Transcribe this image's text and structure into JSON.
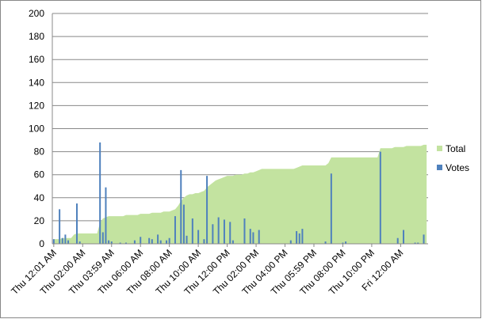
{
  "chart_data": {
    "type": "bar",
    "categories": [
      "Thu 12:01 AM",
      null,
      null,
      null,
      null,
      null,
      null,
      null,
      null,
      null,
      "Thu 02:00 AM",
      null,
      null,
      null,
      null,
      null,
      null,
      null,
      null,
      null,
      "Thu 03:59 AM",
      null,
      null,
      null,
      null,
      null,
      null,
      null,
      null,
      null,
      "Thu 06:00 AM",
      null,
      null,
      null,
      null,
      null,
      null,
      null,
      null,
      null,
      "Thu 08:00 AM",
      null,
      null,
      null,
      null,
      null,
      null,
      null,
      null,
      null,
      "Thu 10:00 AM",
      null,
      null,
      null,
      null,
      null,
      null,
      null,
      null,
      null,
      "Thu 12:00 PM",
      null,
      null,
      null,
      null,
      null,
      null,
      null,
      null,
      null,
      "Thu 02:00 PM",
      null,
      null,
      null,
      null,
      null,
      null,
      null,
      null,
      null,
      "Thu 04:00 PM",
      null,
      null,
      null,
      null,
      null,
      null,
      null,
      null,
      null,
      "Thu 05:59 PM",
      null,
      null,
      null,
      null,
      null,
      null,
      null,
      null,
      null,
      "Thu 08:00 PM",
      null,
      null,
      null,
      null,
      null,
      null,
      null,
      null,
      null,
      "Thu 10:00 PM",
      null,
      null,
      null,
      null,
      null,
      null,
      null,
      null,
      null,
      "Fri 12:00 AM",
      null,
      null,
      null,
      null,
      null,
      null,
      null,
      null,
      null
    ],
    "series": [
      {
        "name": "Total",
        "color": "#c3e3a0",
        "draw": "area",
        "values": [
          4,
          4,
          4,
          5,
          5,
          5,
          5,
          8,
          9,
          9,
          9,
          9,
          9,
          9,
          9,
          9,
          18,
          22,
          23,
          24,
          24,
          24,
          24,
          24,
          24,
          25,
          25,
          25,
          25,
          25,
          26,
          26,
          26,
          26,
          27,
          27,
          27,
          27,
          28,
          28,
          28,
          29,
          30,
          33,
          37,
          40,
          42,
          43,
          43,
          44,
          44,
          45,
          46,
          49,
          51,
          53,
          55,
          56,
          57,
          58,
          59,
          59,
          59,
          60,
          60,
          60,
          61,
          61,
          62,
          62,
          63,
          64,
          65,
          65,
          65,
          65,
          65,
          65,
          65,
          65,
          65,
          65,
          65,
          65,
          66,
          67,
          68,
          68,
          68,
          68,
          68,
          68,
          68,
          68,
          68,
          70,
          75,
          75,
          75,
          75,
          75,
          75,
          75,
          75,
          75,
          75,
          75,
          75,
          75,
          75,
          75,
          75,
          75,
          83,
          83,
          83,
          83,
          83,
          84,
          84,
          84,
          84,
          85,
          85,
          85,
          85,
          85,
          85,
          86,
          86
        ]
      },
      {
        "name": "Votes",
        "color": "#4f81bd",
        "draw": "bar",
        "values": [
          4,
          0,
          30,
          5,
          8,
          3,
          0,
          0,
          35,
          2,
          0,
          0,
          0,
          0,
          0,
          0,
          88,
          10,
          49,
          3,
          2,
          0,
          0,
          1,
          0,
          1,
          0,
          0,
          3,
          0,
          6,
          0,
          0,
          5,
          4,
          0,
          8,
          3,
          0,
          3,
          5,
          0,
          24,
          0,
          64,
          34,
          7,
          0,
          22,
          0,
          12,
          0,
          4,
          59,
          0,
          17,
          0,
          23,
          0,
          21,
          0,
          19,
          3,
          0,
          0,
          0,
          22,
          0,
          13,
          10,
          0,
          12,
          0,
          0,
          0,
          0,
          0,
          0,
          0,
          0,
          0,
          0,
          3,
          0,
          11,
          9,
          13,
          0,
          0,
          0,
          0,
          0,
          0,
          0,
          2,
          0,
          61,
          0,
          0,
          0,
          1,
          2,
          0,
          0,
          0,
          0,
          0,
          0,
          0,
          0,
          0,
          0,
          0,
          80,
          0,
          0,
          0,
          0,
          0,
          5,
          0,
          12,
          0,
          0,
          0,
          1,
          1,
          0,
          8,
          0
        ]
      }
    ],
    "ylim": [
      0,
      200
    ],
    "yticks": [
      0,
      20,
      40,
      60,
      80,
      100,
      120,
      140,
      160,
      180,
      200
    ],
    "grid": true,
    "legend": "right"
  }
}
